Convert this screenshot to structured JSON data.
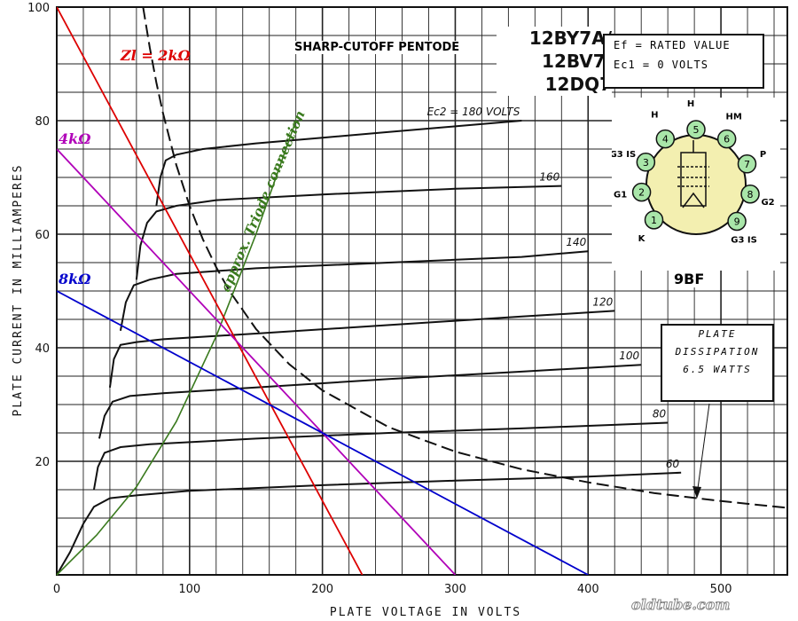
{
  "chart_data": {
    "type": "line",
    "title": "SHARP-CUTOFF PENTODE",
    "tube_names": "12BY7A/ 12BV7/ 12DQ7",
    "tube_name_lines": [
      "12BY7A/",
      "12BV7/",
      "12DQ7"
    ],
    "conditions": [
      "Ef = RATED VALUE",
      "Ec1 = 0 VOLTS"
    ],
    "xlabel": "PLATE VOLTAGE IN VOLTS",
    "ylabel": "PLATE CURRENT IN MILLIAMPERES",
    "xlim": [
      0,
      550
    ],
    "ylim": [
      0,
      100
    ],
    "x_ticks": [
      0,
      100,
      200,
      300,
      400,
      500
    ],
    "y_ticks": [
      20,
      40,
      60,
      80,
      100
    ],
    "grid": true,
    "series": [
      {
        "name": "Ec2 = 180 VOLTS",
        "x": [
          75,
          78,
          82,
          90,
          110,
          150,
          200,
          250,
          300,
          350
        ],
        "y": [
          65,
          70,
          73,
          74,
          75,
          76,
          77,
          78,
          79,
          80
        ],
        "color": "#111111"
      },
      {
        "name": "160",
        "x": [
          60,
          63,
          68,
          75,
          90,
          120,
          200,
          300,
          380
        ],
        "y": [
          52,
          58,
          62,
          64,
          65,
          66,
          67,
          68,
          68.5
        ],
        "color": "#111111"
      },
      {
        "name": "140",
        "x": [
          48,
          52,
          58,
          70,
          90,
          150,
          250,
          350,
          400
        ],
        "y": [
          43,
          48,
          51,
          52,
          53,
          54,
          55,
          56,
          57
        ],
        "color": "#111111"
      },
      {
        "name": "120",
        "x": [
          40,
          43,
          48,
          60,
          80,
          150,
          250,
          350,
          420
        ],
        "y": [
          33,
          38,
          40.5,
          41,
          41.5,
          42.5,
          44,
          45.5,
          46.5
        ],
        "color": "#111111"
      },
      {
        "name": "100",
        "x": [
          32,
          36,
          42,
          55,
          80,
          150,
          250,
          350,
          440
        ],
        "y": [
          24,
          28,
          30.5,
          31.5,
          32,
          33,
          34.5,
          35.8,
          37
        ],
        "color": "#111111"
      },
      {
        "name": "80",
        "x": [
          28,
          31,
          36,
          48,
          70,
          150,
          250,
          350,
          460
        ],
        "y": [
          15,
          19,
          21.5,
          22.5,
          23,
          24,
          25,
          25.8,
          26.8
        ],
        "color": "#111111"
      },
      {
        "name": "60",
        "x": [
          0,
          10,
          20,
          28,
          40,
          60,
          100,
          200,
          300,
          400,
          470
        ],
        "y": [
          0,
          4,
          9,
          12,
          13.5,
          14,
          14.8,
          15.8,
          16.6,
          17.3,
          18
        ],
        "color": "#111111"
      }
    ],
    "plate_dissipation": {
      "name": "PLATE DISSIPATION 6.5 WATTS",
      "label_lines": [
        "PLATE",
        "DISSIPATION",
        "6.5 WATTS"
      ],
      "x": [
        65,
        70,
        75,
        80,
        90,
        100,
        110,
        120,
        130,
        150,
        175,
        200,
        250,
        300,
        350,
        400,
        450,
        500,
        550
      ],
      "y": [
        100,
        92.9,
        86.7,
        81.3,
        72.2,
        65,
        59.1,
        54.2,
        50,
        43.3,
        37.1,
        32.5,
        26,
        21.7,
        18.6,
        16.3,
        14.4,
        13,
        11.8
      ]
    },
    "load_lines": [
      {
        "name": "Zl = 2kΩ",
        "x": [
          0,
          230
        ],
        "y": [
          115,
          0
        ],
        "color": "#dd0000"
      },
      {
        "name": "4kΩ",
        "x": [
          0,
          300
        ],
        "y": [
          75,
          0
        ],
        "color": "#b000b8"
      },
      {
        "name": "8kΩ",
        "x": [
          0,
          400
        ],
        "y": [
          50,
          0
        ],
        "color": "#0000cc"
      }
    ],
    "triode_curve": {
      "name": "approx. Triode connection",
      "x": [
        0,
        30,
        60,
        90,
        120,
        150,
        180
      ],
      "y": [
        0,
        7,
        15.5,
        27,
        42,
        60,
        80
      ],
      "color": "#3a7a1e"
    }
  },
  "socket": {
    "basing": "9BF",
    "pins": [
      {
        "n": "1",
        "label": "K"
      },
      {
        "n": "2",
        "label": "G1"
      },
      {
        "n": "3",
        "label": "G3 IS"
      },
      {
        "n": "4",
        "label": "H"
      },
      {
        "n": "5",
        "label": "H"
      },
      {
        "n": "6",
        "label": "HM"
      },
      {
        "n": "7",
        "label": "P"
      },
      {
        "n": "8",
        "label": "G2"
      },
      {
        "n": "9",
        "label": "G3 IS"
      }
    ]
  },
  "watermark": "oldtube.com"
}
